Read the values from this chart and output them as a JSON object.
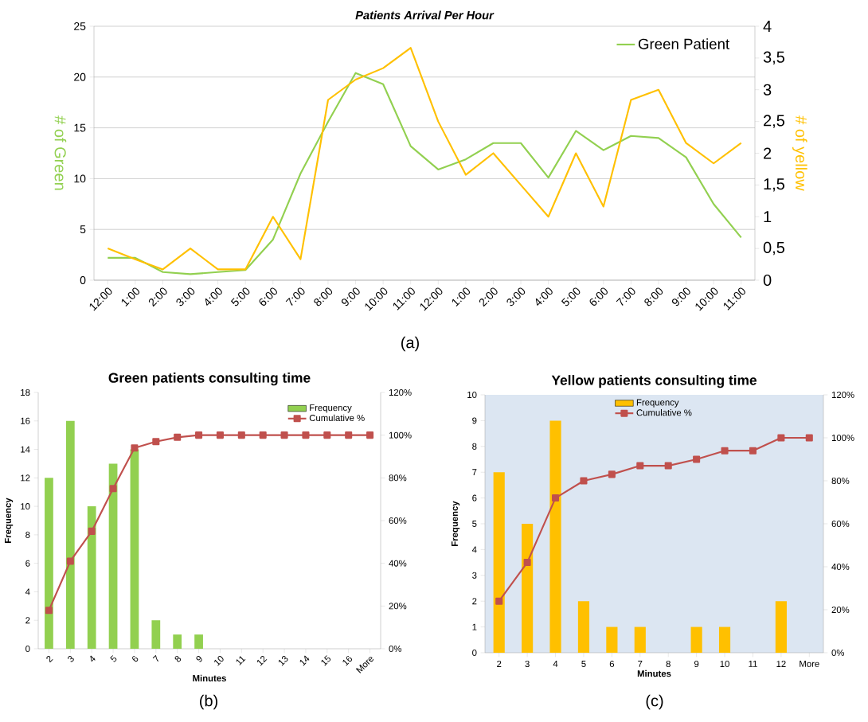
{
  "chart_data": [
    {
      "type": "line",
      "title": "Patients Arrival Per Hour",
      "ylabel": "# of Green",
      "y2label": "# of yellow",
      "annotations": [
        "(a)"
      ],
      "categories": [
        "12:00",
        "1:00",
        "2:00",
        "3:00",
        "4:00",
        "5:00",
        "6:00",
        "7:00",
        "8:00",
        "9:00",
        "10:00",
        "11:00",
        "12:00",
        "1:00",
        "2:00",
        "3:00",
        "4:00",
        "5:00",
        "6:00",
        "7:00",
        "8:00",
        "9:00",
        "10:00",
        "11:00"
      ],
      "series": [
        {
          "name": "Green Patient",
          "color": "#92d050",
          "values": [
            2.2,
            2.2,
            0.8,
            0.6,
            0.8,
            1.0,
            4.0,
            10.5,
            15.6,
            20.4,
            19.3,
            13.2,
            10.9,
            11.9,
            13.5,
            13.5,
            10.1,
            14.7,
            12.8,
            14.2,
            14.0,
            12.1,
            7.5,
            4.2
          ]
        },
        {
          "color": "#ffc000",
          "axis": "y2",
          "values": [
            0.5,
            0.33,
            0.17,
            0.5,
            0.17,
            0.17,
            1.0,
            0.33,
            2.84,
            3.16,
            3.34,
            3.66,
            2.5,
            1.66,
            2.0,
            1.5,
            1.0,
            2.0,
            1.16,
            2.84,
            3.0,
            2.16,
            1.84,
            2.16
          ]
        }
      ],
      "ylim": [
        0,
        25
      ],
      "yticks": [
        0,
        5,
        10,
        15,
        20,
        25
      ],
      "y2lim": [
        0,
        4
      ],
      "y2ticks": [
        0,
        {
          "value": 0.5,
          "label": "0,5"
        },
        1,
        {
          "value": 1.5,
          "label": "1,5"
        },
        2,
        {
          "value": 2.5,
          "label": "2,5"
        },
        3,
        {
          "value": 3.5,
          "label": "3,5"
        },
        4
      ],
      "grid": "y",
      "legend": "top right"
    },
    {
      "type": "bar",
      "title": "Green patients consulting time",
      "xlabel": "Minutes",
      "ylabel": "Frequency",
      "annotations": [
        "(b)"
      ],
      "categories": [
        "2",
        "3",
        "4",
        "5",
        "6",
        "7",
        "8",
        "9",
        "10",
        "11",
        "12",
        "13",
        "14",
        "15",
        "16",
        "More"
      ],
      "series": [
        {
          "name": "Frequency",
          "color": "#92d050",
          "values": [
            12,
            16,
            10,
            13,
            14,
            2,
            1,
            1,
            0,
            0,
            0,
            0,
            0,
            0,
            0,
            0
          ]
        },
        {
          "name": "Cumulative %",
          "type": "line",
          "axis": "y2",
          "marker": "square",
          "color": "#c0504d",
          "values": [
            18,
            41,
            55,
            75,
            94,
            97,
            99,
            100,
            100,
            100,
            100,
            100,
            100,
            100,
            100,
            100
          ]
        }
      ],
      "ylim": [
        0,
        18
      ],
      "yticks": [
        0,
        2,
        4,
        6,
        8,
        10,
        12,
        14,
        16,
        18
      ],
      "y2lim": [
        0,
        120
      ],
      "y2ticks": [
        {
          "value": 0,
          "label": "0%"
        },
        {
          "value": 20,
          "label": "20%"
        },
        {
          "value": 40,
          "label": "40%"
        },
        {
          "value": 60,
          "label": "60%"
        },
        {
          "value": 80,
          "label": "80%"
        },
        {
          "value": 100,
          "label": "100%"
        },
        {
          "value": 120,
          "label": "120%"
        }
      ],
      "legend": "top right"
    },
    {
      "type": "bar",
      "title": "Yellow patients consulting time",
      "xlabel": "Minutes",
      "ylabel": "Frequency",
      "annotations": [
        "(c)"
      ],
      "categories": [
        "2",
        "3",
        "4",
        "5",
        "6",
        "7",
        "8",
        "9",
        "10",
        "11",
        "12",
        "More"
      ],
      "series": [
        {
          "name": "Frequency",
          "color": "#ffc000",
          "values": [
            7,
            5,
            9,
            2,
            1,
            1,
            0,
            1,
            1,
            0,
            2,
            0
          ]
        },
        {
          "name": "Cumulative %",
          "type": "line",
          "axis": "y2",
          "marker": "square",
          "color": "#c0504d",
          "values": [
            24,
            42,
            72,
            80,
            83,
            87,
            87,
            90,
            94,
            94,
            100,
            100
          ]
        }
      ],
      "ylim": [
        0,
        10
      ],
      "yticks": [
        0,
        1,
        2,
        3,
        4,
        5,
        6,
        7,
        8,
        9,
        10
      ],
      "y2lim": [
        0,
        120
      ],
      "y2ticks": [
        {
          "value": 0,
          "label": "0%"
        },
        {
          "value": 20,
          "label": "20%"
        },
        {
          "value": 40,
          "label": "40%"
        },
        {
          "value": 60,
          "label": "60%"
        },
        {
          "value": 80,
          "label": "80%"
        },
        {
          "value": 100,
          "label": "100%"
        },
        {
          "value": 120,
          "label": "120%"
        }
      ],
      "legend": "top"
    }
  ]
}
